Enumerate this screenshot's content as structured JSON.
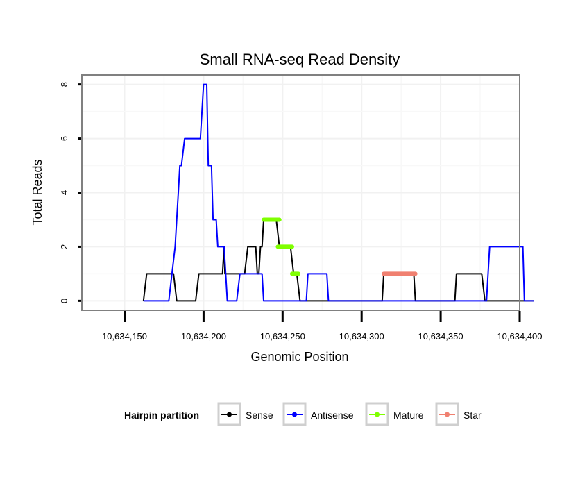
{
  "chart_data": {
    "type": "line",
    "title": "Small RNA-seq Read Density",
    "xlabel": "Genomic Position",
    "ylabel": "Total Reads",
    "xlim": [
      10634123,
      10634400
    ],
    "ylim": [
      -0.35,
      8.35
    ],
    "x_ticks": [
      10634150,
      10634200,
      10634250,
      10634300,
      10634350,
      10634400
    ],
    "x_tick_labels": [
      "10,634,150",
      "10,634,200",
      "10,634,250",
      "10,634,300",
      "10,634,350",
      "10,634,400"
    ],
    "y_ticks": [
      0,
      2,
      4,
      6,
      8
    ],
    "y_tick_labels": [
      "0",
      "2",
      "4",
      "6",
      "8"
    ],
    "grid": true,
    "legend": {
      "title": "Hairpin partition",
      "position": "bottom",
      "entries": [
        "Sense",
        "Antisense",
        "Mature",
        "Star"
      ]
    },
    "series": [
      {
        "name": "Sense",
        "color": "#000000",
        "width": 2,
        "points": [
          [
            10634162,
            0
          ],
          [
            10634164,
            1
          ],
          [
            10634181,
            1
          ],
          [
            10634183,
            0
          ],
          [
            10634195,
            0
          ],
          [
            10634197,
            1
          ],
          [
            10634212,
            1
          ],
          [
            10634213,
            2
          ],
          [
            10634213.5,
            1
          ],
          [
            10634226,
            1
          ],
          [
            10634228,
            2
          ],
          [
            10634233,
            2
          ],
          [
            10634234,
            1
          ],
          [
            10634235,
            1
          ],
          [
            10634236,
            2
          ],
          [
            10634237,
            2
          ],
          [
            10634238,
            3
          ],
          [
            10634246,
            3
          ],
          [
            10634248,
            2
          ],
          [
            10634255,
            2
          ],
          [
            10634257,
            1
          ],
          [
            10634259,
            1
          ],
          [
            10634261,
            0
          ],
          [
            10634313,
            0
          ],
          [
            10634314,
            1
          ],
          [
            10634333,
            1
          ],
          [
            10634334,
            0
          ],
          [
            10634359,
            0
          ],
          [
            10634360,
            1
          ],
          [
            10634376,
            1
          ],
          [
            10634378,
            0
          ],
          [
            10634409,
            0
          ]
        ]
      },
      {
        "name": "Antisense",
        "color": "#0000ff",
        "width": 2,
        "points": [
          [
            10634162,
            0
          ],
          [
            10634178,
            0
          ],
          [
            10634182,
            2
          ],
          [
            10634184,
            4
          ],
          [
            10634185,
            5
          ],
          [
            10634186,
            5
          ],
          [
            10634188,
            6
          ],
          [
            10634198,
            6
          ],
          [
            10634199,
            7
          ],
          [
            10634200,
            8
          ],
          [
            10634202,
            8
          ],
          [
            10634203,
            5
          ],
          [
            10634205,
            5
          ],
          [
            10634206,
            3
          ],
          [
            10634208,
            3
          ],
          [
            10634209,
            2
          ],
          [
            10634213,
            2
          ],
          [
            10634215,
            0
          ],
          [
            10634221,
            0
          ],
          [
            10634223,
            1
          ],
          [
            10634237,
            1
          ],
          [
            10634238,
            0
          ],
          [
            10634259,
            0
          ],
          [
            10634265,
            0
          ],
          [
            10634266,
            1
          ],
          [
            10634278,
            1
          ],
          [
            10634279,
            0
          ],
          [
            10634379,
            0
          ],
          [
            10634381,
            2
          ],
          [
            10634402,
            2
          ],
          [
            10634403,
            0
          ],
          [
            10634409,
            0
          ]
        ]
      },
      {
        "name": "Mature",
        "color": "#7fff00",
        "width": 6,
        "segments": [
          {
            "x": [
              10634238,
              10634248
            ],
            "y": 3
          },
          {
            "x": [
              10634247,
              10634256
            ],
            "y": 2
          },
          {
            "x": [
              10634256,
              10634260
            ],
            "y": 1
          }
        ]
      },
      {
        "name": "Star",
        "color": "#f08070",
        "width": 6,
        "segments": [
          {
            "x": [
              10634314,
              10634334
            ],
            "y": 1
          }
        ]
      }
    ]
  }
}
